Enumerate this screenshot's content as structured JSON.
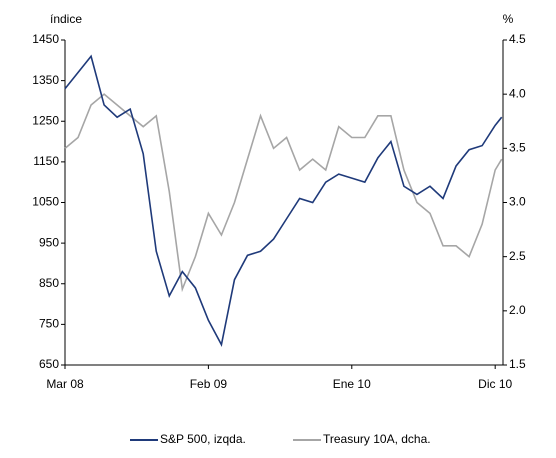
{
  "chart_data": {
    "type": "line",
    "y_label": "índice",
    "y2_label": "%",
    "x": [
      0,
      1,
      2,
      3,
      4,
      5,
      6,
      7,
      8,
      9,
      10,
      11,
      12,
      13,
      14,
      15,
      16,
      17,
      18,
      19,
      20,
      21,
      22,
      23,
      24,
      25,
      26,
      27,
      28,
      29,
      30,
      31,
      32,
      33,
      33.5
    ],
    "xlim": [
      0,
      33.6
    ],
    "xticks": [
      {
        "value": 0,
        "label": "Mar 08"
      },
      {
        "value": 11,
        "label": "Feb 09"
      },
      {
        "value": 22,
        "label": "Ene 10"
      },
      {
        "value": 33,
        "label": "Dic 10"
      }
    ],
    "ylim": [
      650,
      1450
    ],
    "yticks": [
      650,
      750,
      850,
      950,
      1050,
      1150,
      1250,
      1350,
      1450
    ],
    "y2lim": [
      1.5,
      4.5
    ],
    "y2ticks": [
      1.5,
      {
        "value": 2,
        "label": "2.0"
      },
      2.5,
      {
        "value": 3,
        "label": "3.0"
      },
      3.5,
      {
        "value": 4,
        "label": "4.0"
      },
      4.5
    ],
    "grid": false,
    "legend": "bottom",
    "series": [
      {
        "name": "S&P 500, izqda.",
        "color": "#1f3a7a",
        "values": [
          1330,
          1370,
          1410,
          1290,
          1260,
          1280,
          1170,
          930,
          820,
          880,
          840,
          760,
          700,
          860,
          920,
          930,
          960,
          1010,
          1060,
          1050,
          1100,
          1120,
          1110,
          1100,
          1160,
          1200,
          1090,
          1070,
          1090,
          1060,
          1140,
          1180,
          1190,
          1240,
          1260
        ]
      },
      {
        "name": "Treasury 10A, dcha.",
        "color": "#a6a6a6",
        "axis": "y2",
        "values": [
          3.5,
          3.6,
          3.9,
          4.0,
          3.9,
          3.8,
          3.7,
          3.8,
          3.1,
          2.2,
          2.5,
          2.9,
          2.7,
          3.0,
          3.4,
          3.8,
          3.5,
          3.6,
          3.3,
          3.4,
          3.3,
          3.7,
          3.6,
          3.6,
          3.8,
          3.8,
          3.3,
          3.0,
          2.9,
          2.6,
          2.6,
          2.5,
          2.8,
          3.3,
          3.4
        ]
      }
    ]
  }
}
